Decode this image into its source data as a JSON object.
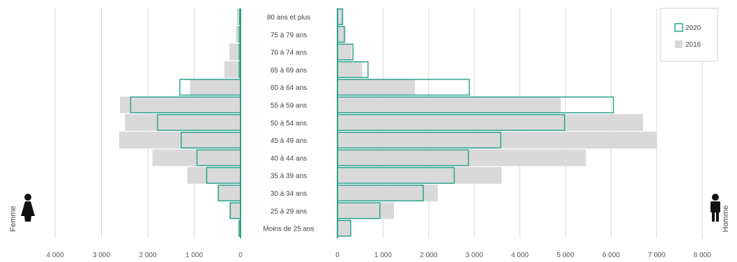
{
  "chart_data": {
    "type": "bar",
    "orientation": "horizontal",
    "subtype": "population-pyramid",
    "categories": [
      "Moins de 25 ans",
      "25 à 29 ans",
      "30 à 34 ans",
      "35 à 39 ans",
      "40 à 44 ans",
      "45 à 49 ans",
      "50 à 54 ans",
      "55 à 59 ans",
      "60 à 64 ans",
      "65 à 69 ans",
      "70 à 74 ans",
      "75 à 79 ans",
      "80 ans et plus"
    ],
    "left_label": "Femme",
    "right_label": "Homme",
    "left_ticks": [
      "4 000",
      "3 000",
      "2 000",
      "1 000",
      "0"
    ],
    "right_ticks": [
      "0",
      "1 000",
      "2 000",
      "3 000",
      "4 000",
      "5 000",
      "6 000",
      "7 000",
      "8 000"
    ],
    "left_xlim": [
      0,
      4000
    ],
    "right_xlim": [
      0,
      8000
    ],
    "series": [
      {
        "name": "2020",
        "style": "outline",
        "color": "#2aa58c",
        "femme": [
          30,
          220,
          480,
          730,
          940,
          1280,
          1790,
          2370,
          1310,
          30,
          30,
          30,
          20
        ],
        "homme": [
          290,
          930,
          1880,
          2560,
          2870,
          3580,
          4980,
          6050,
          2890,
          670,
          340,
          150,
          110
        ]
      },
      {
        "name": "2016",
        "style": "fill",
        "color": "#d9d9d9",
        "femme": [
          50,
          250,
          490,
          1150,
          1900,
          2620,
          2490,
          2600,
          1090,
          350,
          240,
          100,
          80
        ],
        "homme": [
          290,
          1240,
          2200,
          3600,
          5450,
          7000,
          6700,
          4900,
          1700,
          540,
          310,
          180,
          130
        ]
      }
    ],
    "legend": {
      "position": "top-right",
      "entries": [
        "2020",
        "2016"
      ]
    },
    "grid": true
  }
}
